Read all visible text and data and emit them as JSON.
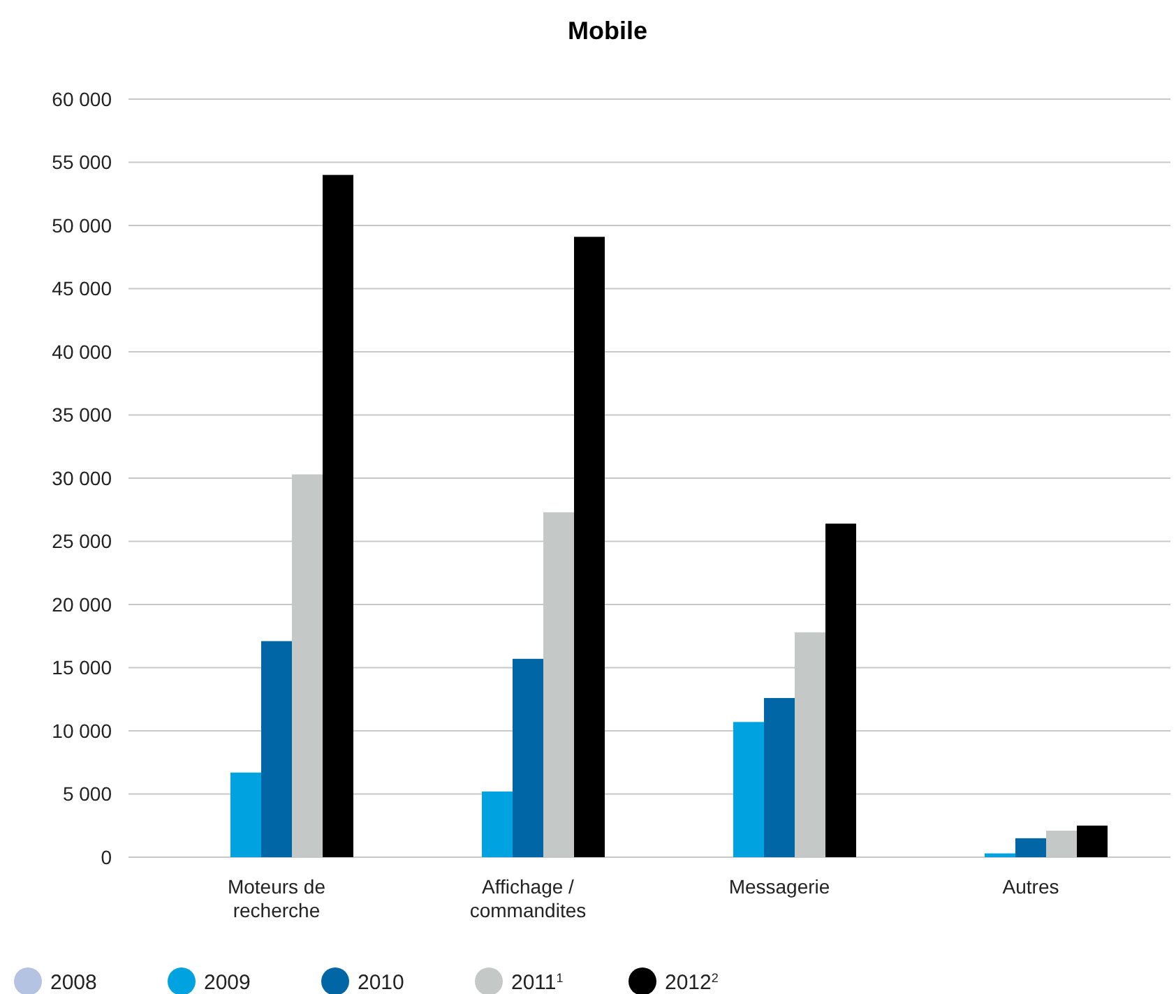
{
  "chart_data": {
    "type": "bar",
    "title": "Mobile",
    "categories": [
      "Moteurs de recherche",
      "Affichage / commandites",
      "Messagerie",
      "Autres"
    ],
    "series": [
      {
        "name": "2008",
        "color": "#b4c3e2",
        "values": [
          null,
          null,
          null,
          null
        ]
      },
      {
        "name": "2009",
        "color": "#00a3e0",
        "values": [
          6700,
          5200,
          10700,
          300
        ]
      },
      {
        "name": "2010",
        "color": "#0066a6",
        "values": [
          17100,
          15700,
          12600,
          1500
        ]
      },
      {
        "name": "2011$^{1}$",
        "color": "#c4c9c8",
        "values": [
          30300,
          27300,
          17800,
          2100
        ]
      },
      {
        "name": "2012$^{2}$",
        "color": "#000000",
        "values": [
          54000,
          49100,
          26400,
          2500
        ]
      }
    ],
    "ylim": [
      0,
      60000
    ],
    "yticks": [
      {
        "value": 0,
        "label": "0"
      },
      {
        "value": 5000,
        "label": "5 000"
      },
      {
        "value": 10000,
        "label": "10 000"
      },
      {
        "value": 15000,
        "label": "15 000"
      },
      {
        "value": 20000,
        "label": "20 000"
      },
      {
        "value": 25000,
        "label": "25 000"
      },
      {
        "value": 30000,
        "label": "30 000"
      },
      {
        "value": 35000,
        "label": "35 000"
      },
      {
        "value": 40000,
        "label": "40 000"
      },
      {
        "value": 45000,
        "label": "45 000"
      },
      {
        "value": 50000,
        "label": "50 000"
      },
      {
        "value": 55000,
        "label": "55 000"
      },
      {
        "value": 60000,
        "label": "60 000"
      }
    ],
    "grid": "y",
    "legend": "bottom"
  }
}
